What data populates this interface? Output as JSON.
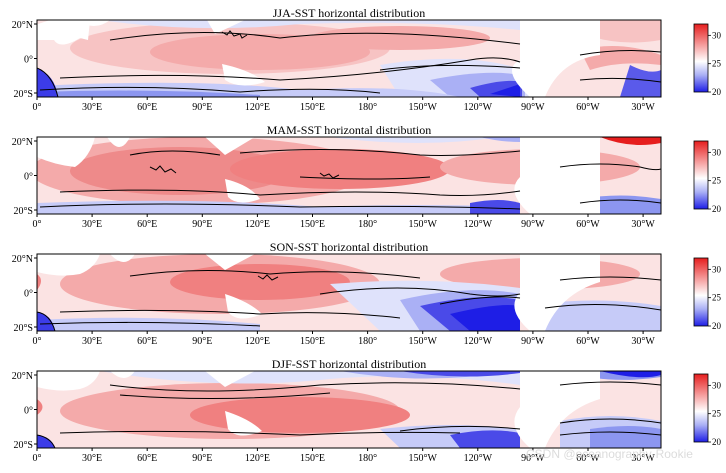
{
  "figure": {
    "lon_ticks": [
      "0°",
      "30°E",
      "60°E",
      "90°E",
      "120°E",
      "150°E",
      "180°",
      "150°W",
      "120°W",
      "90°W",
      "60°W",
      "30°W"
    ],
    "lat_ticks": [
      "20°N",
      "0°",
      "20°S"
    ],
    "colorbar_ticks": [
      "30",
      "25",
      "20"
    ],
    "colorbar_range": [
      20,
      32
    ],
    "colors": {
      "warm_max": "#e61e1e",
      "warm_mid": "#f08080",
      "neutral": "#ffffff",
      "cool_mid": "#8c96f0",
      "cool_max": "#1e1ee6",
      "contour": "#000000"
    }
  },
  "panels": [
    {
      "id": "jja",
      "title": "JJA-SST horizontal distribution",
      "season": "JJA"
    },
    {
      "id": "mam",
      "title": "MAM-SST horizontal distribution",
      "season": "MAM"
    },
    {
      "id": "son",
      "title": "SON-SST horizontal distribution",
      "season": "SON"
    },
    {
      "id": "djf",
      "title": "DJF-SST horizontal distribution",
      "season": "DJF"
    }
  ],
  "watermark": "CSDN @oceanography-Rookie"
}
